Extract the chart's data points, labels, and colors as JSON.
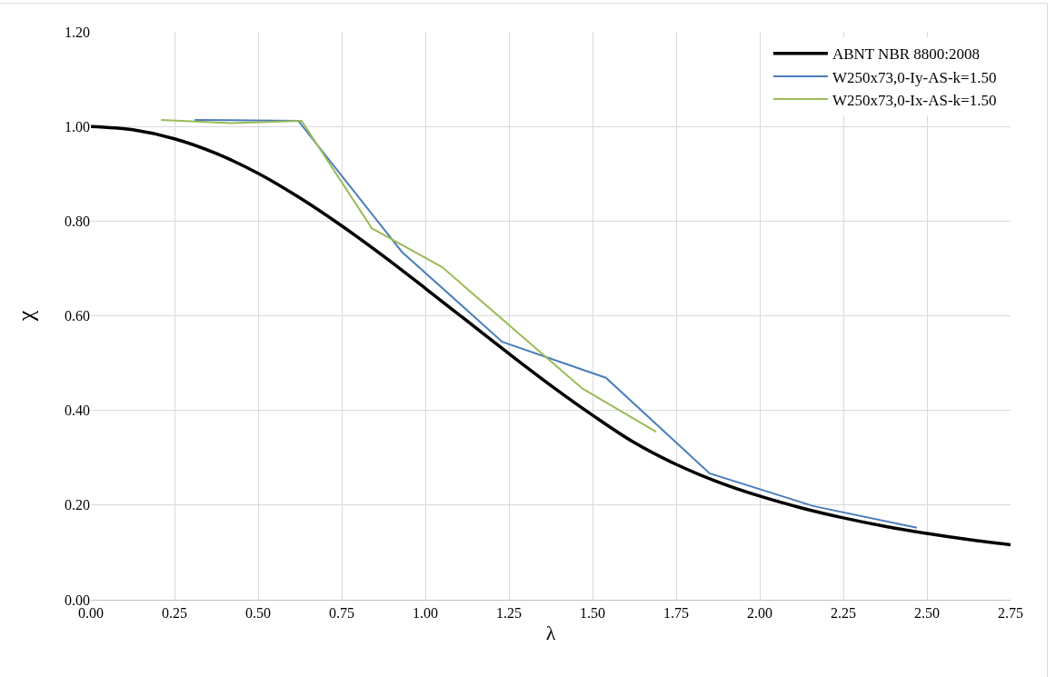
{
  "chart_data": {
    "type": "line",
    "xlabel": "λ",
    "ylabel": "χ",
    "xlim": [
      0,
      2.75
    ],
    "xticks": [
      {
        "value": 0,
        "label": "0.00"
      },
      {
        "value": 0.25,
        "label": "0.25"
      },
      {
        "value": 0.5,
        "label": "0.50"
      },
      {
        "value": 0.75,
        "label": "0.75"
      },
      {
        "value": 1,
        "label": "1.00"
      },
      {
        "value": 1.25,
        "label": "1.25"
      },
      {
        "value": 1.5,
        "label": "1.50"
      },
      {
        "value": 1.75,
        "label": "1.75"
      },
      {
        "value": 2,
        "label": "2.00"
      },
      {
        "value": 2.25,
        "label": "2.25"
      },
      {
        "value": 2.5,
        "label": "2.50"
      },
      {
        "value": 2.75,
        "label": "2.75"
      }
    ],
    "ylim": [
      0,
      1.2
    ],
    "yticks": [
      {
        "value": 0,
        "label": "0.00"
      },
      {
        "value": 0.2,
        "label": "0.20"
      },
      {
        "value": 0.4,
        "label": "0.40"
      },
      {
        "value": 0.6,
        "label": "0.60"
      },
      {
        "value": 0.8,
        "label": "0.80"
      },
      {
        "value": 1,
        "label": "1.00"
      },
      {
        "value": 1.2,
        "label": "1.20"
      }
    ],
    "grid": true,
    "legend": "top right",
    "marker": "none",
    "line_style": "solid",
    "series": [
      {
        "name": "ABNT NBR 8800:2008",
        "color": "#000000",
        "x": [
          0,
          0.125,
          0.25,
          0.375,
          0.5,
          0.625,
          0.75,
          0.875,
          1.0,
          1.125,
          1.25,
          1.375,
          1.5,
          1.625,
          1.75,
          1.875,
          2.0,
          2.125,
          2.25,
          2.375,
          2.5,
          2.625,
          2.75
        ],
        "values": [
          1.0,
          0.993,
          0.974,
          0.943,
          0.901,
          0.849,
          0.79,
          0.726,
          0.658,
          0.589,
          0.52,
          0.453,
          0.39,
          0.332,
          0.286,
          0.249,
          0.219,
          0.194,
          0.173,
          0.155,
          0.14,
          0.127,
          0.116
        ]
      },
      {
        "name": "W250x73,0-Iy-AS-k=1.50",
        "color": "#4a7ebb",
        "x": [
          0.31,
          0.62,
          0.93,
          1.23,
          1.54,
          1.85,
          2.16,
          2.47
        ],
        "values": [
          1.014,
          1.012,
          0.735,
          0.545,
          0.469,
          0.267,
          0.198,
          0.152
        ]
      },
      {
        "name": "W250x73,0-Ix-AS-k=1.50",
        "color": "#9bbb59",
        "x": [
          0.21,
          0.42,
          0.63,
          0.84,
          1.05,
          1.47,
          1.69
        ],
        "values": [
          1.014,
          1.007,
          1.012,
          0.785,
          0.703,
          0.446,
          0.355
        ]
      }
    ]
  }
}
